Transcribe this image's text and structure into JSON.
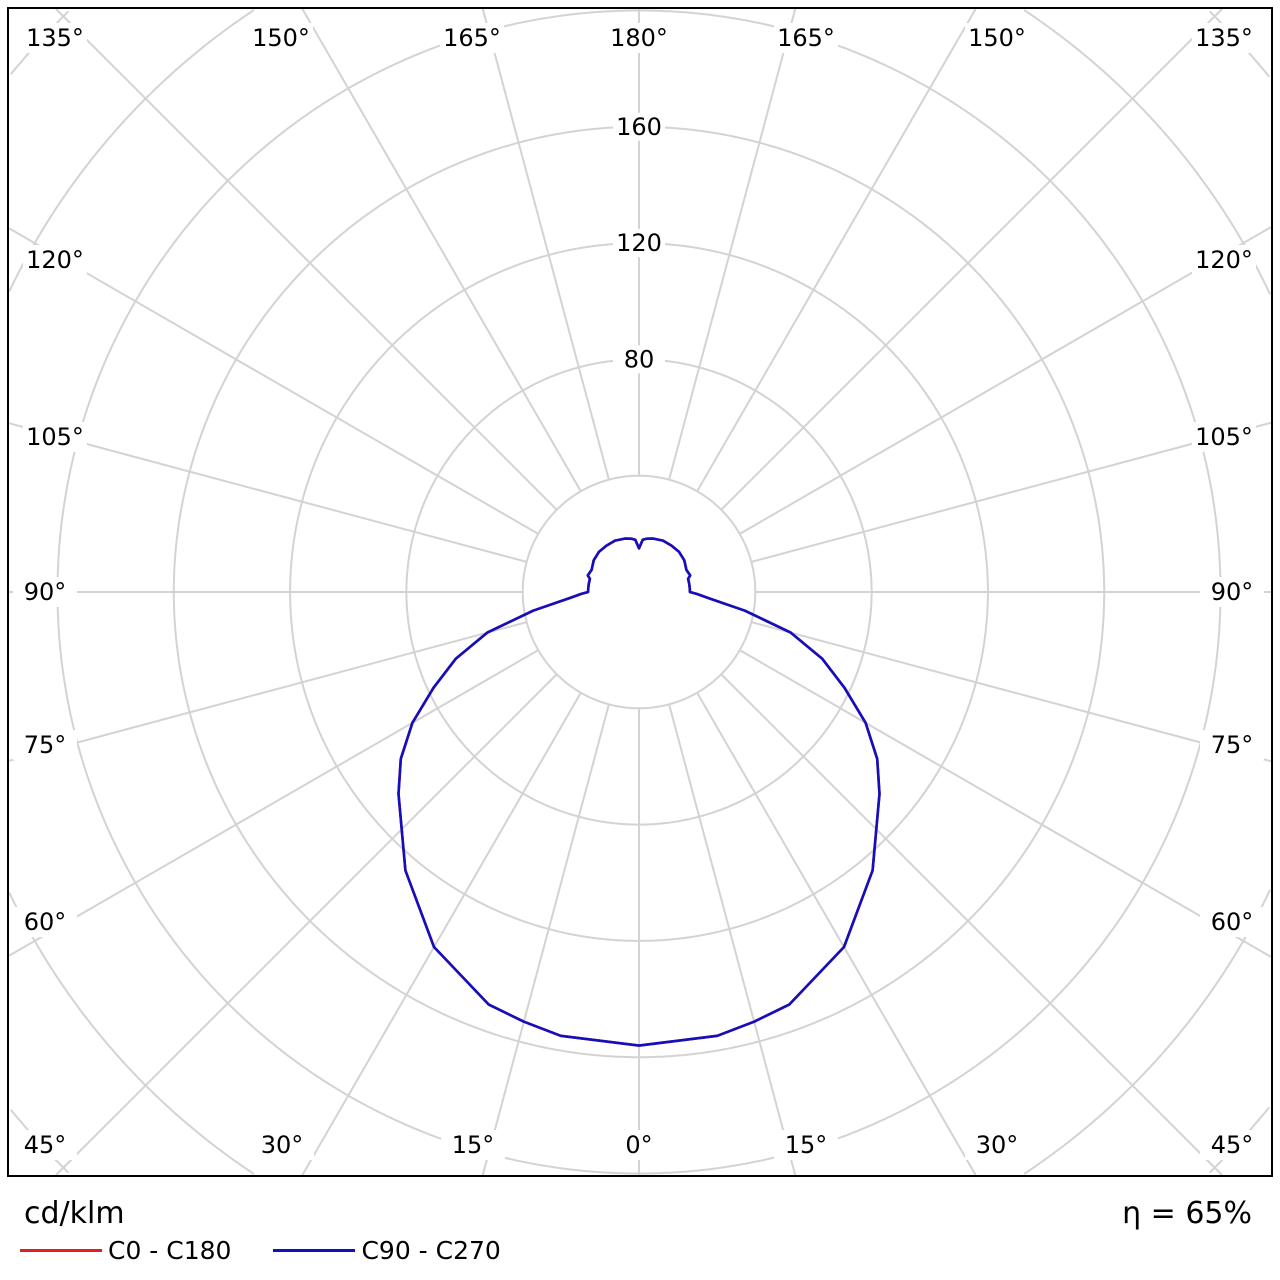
{
  "chart_data": {
    "type": "polar",
    "unit_label": "cd/klm",
    "efficiency_label": "η = 65%",
    "radial_ticks": [
      40,
      80,
      120,
      160,
      200,
      240,
      280,
      320,
      360
    ],
    "radial_tick_labels": [
      "80",
      "120",
      "160"
    ],
    "angle_step_deg": 15,
    "angle_labels": {
      "top": [
        "135°",
        "150°",
        "165°",
        "180°",
        "165°",
        "150°",
        "135°"
      ],
      "left": [
        "120°",
        "105°",
        "90°",
        "75°",
        "60°",
        "45°"
      ],
      "right": [
        "120°",
        "105°",
        "90°",
        "75°",
        "60°",
        "45°"
      ],
      "bottom": [
        "30°",
        "15°",
        "0°",
        "15°",
        "30°"
      ]
    },
    "grid": true,
    "colors": {
      "grid": "#d3d3d3",
      "C0-C180": "#e02020",
      "C90-C270": "#1010c0"
    },
    "series": [
      {
        "name": "C0 - C180",
        "color": "#e02020",
        "gamma": [
          0,
          10,
          15,
          20,
          30,
          40,
          50,
          55,
          60,
          65,
          70,
          75,
          80,
          85,
          88,
          90,
          95,
          100,
          105,
          108,
          115,
          125,
          135,
          145,
          155,
          165,
          172,
          176,
          180
        ],
        "values": [
          156,
          155,
          153,
          151,
          141,
          125,
          108,
          100,
          90,
          78,
          67,
          54,
          37,
          24,
          20,
          17.5,
          17.5,
          17.5,
          17.5,
          18.5,
          18,
          19,
          19.5,
          19.5,
          19.5,
          19,
          18.5,
          18,
          15
        ]
      },
      {
        "name": "C90 - C270",
        "color": "#1010c0",
        "gamma": [
          0,
          10,
          15,
          20,
          30,
          40,
          50,
          55,
          60,
          65,
          70,
          75,
          80,
          85,
          88,
          90,
          95,
          100,
          105,
          108,
          115,
          125,
          135,
          145,
          155,
          165,
          172,
          176,
          180
        ],
        "values": [
          156,
          155,
          153,
          151,
          141,
          125,
          108,
          100,
          90,
          78,
          67,
          54,
          37,
          24,
          20,
          17.5,
          17.5,
          17.5,
          17.5,
          18.5,
          18,
          19,
          19.5,
          19.5,
          19.5,
          19,
          18.5,
          18,
          15
        ]
      }
    ]
  }
}
